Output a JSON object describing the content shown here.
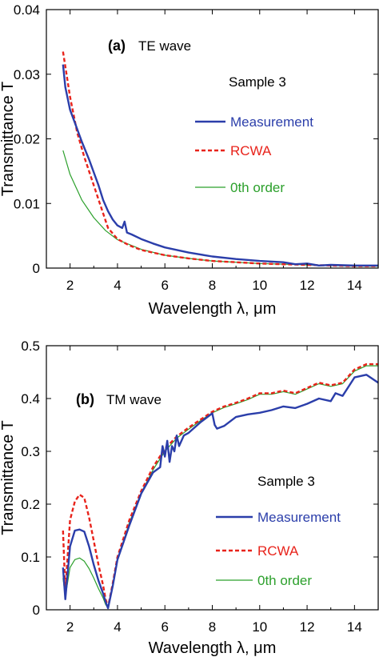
{
  "colors": {
    "measurement": "#2b3eaa",
    "rcwa": "#e8231b",
    "zeroth": "#2ca02c",
    "axis": "#000000"
  },
  "chart_data": [
    {
      "type": "line",
      "panel_label": "(a)",
      "title": "TE wave",
      "annotation": "Sample 3",
      "xlabel": "Wavelength λ, μm",
      "ylabel": "Transmittance T",
      "xlim": [
        1,
        15
      ],
      "ylim": [
        0,
        0.04
      ],
      "xticks": [
        2,
        4,
        6,
        8,
        10,
        12,
        14
      ],
      "yticks": [
        0,
        0.01,
        0.02,
        0.03,
        0.04
      ],
      "ytick_labels": [
        "0",
        "0.01",
        "0.02",
        "0.03",
        "0.04"
      ],
      "legend_position": "right",
      "series": [
        {
          "name": "Measurement",
          "style": "solid-thick",
          "x": [
            1.7,
            1.8,
            2.0,
            2.2,
            2.5,
            2.8,
            3.0,
            3.2,
            3.4,
            3.6,
            3.8,
            4.0,
            4.2,
            4.3,
            4.4,
            4.6,
            5.0,
            5.5,
            6.0,
            7.0,
            8.0,
            9.0,
            10.0,
            11.0,
            11.5,
            12.0,
            12.5,
            13.0,
            14.0,
            15.0
          ],
          "y": [
            0.0315,
            0.028,
            0.0245,
            0.0225,
            0.0195,
            0.0168,
            0.0148,
            0.0128,
            0.0105,
            0.0088,
            0.0075,
            0.0066,
            0.0062,
            0.0072,
            0.0055,
            0.0052,
            0.0045,
            0.0038,
            0.0032,
            0.0024,
            0.0018,
            0.0014,
            0.0011,
            0.0009,
            0.0006,
            0.0007,
            0.0004,
            0.0005,
            0.0004,
            0.0004
          ]
        },
        {
          "name": "RCWA",
          "style": "dashed",
          "x": [
            1.7,
            2.0,
            2.3,
            2.6,
            3.0,
            3.3,
            3.6,
            4.0,
            4.5,
            5.0,
            6.0,
            7.0,
            8.0,
            9.0,
            10.0,
            11.0,
            12.0,
            13.0,
            14.0,
            15.0
          ],
          "y": [
            0.0335,
            0.0265,
            0.021,
            0.0172,
            0.0128,
            0.0095,
            0.0062,
            0.0045,
            0.0035,
            0.0028,
            0.002,
            0.0015,
            0.0011,
            0.0009,
            0.0007,
            0.0006,
            0.0005,
            0.0004,
            0.0003,
            0.0003
          ]
        },
        {
          "name": "0th order",
          "style": "solid-thin",
          "x": [
            1.7,
            2.0,
            2.5,
            3.0,
            3.5,
            4.0,
            5.0,
            6.0,
            7.0,
            8.0,
            9.0,
            10.0,
            12.0,
            14.0,
            15.0
          ],
          "y": [
            0.0182,
            0.0145,
            0.0105,
            0.0078,
            0.0058,
            0.0044,
            0.0029,
            0.002,
            0.0015,
            0.0011,
            0.0009,
            0.0007,
            0.0005,
            0.0003,
            0.0003
          ]
        }
      ]
    },
    {
      "type": "line",
      "panel_label": "(b)",
      "title": "TM wave",
      "annotation": "Sample 3",
      "xlabel": "Wavelength λ, μm",
      "ylabel": "Transmittance T",
      "xlim": [
        1,
        15
      ],
      "ylim": [
        0,
        0.5
      ],
      "xticks": [
        2,
        4,
        6,
        8,
        10,
        12,
        14
      ],
      "yticks": [
        0,
        0.1,
        0.2,
        0.3,
        0.4,
        0.5
      ],
      "ytick_labels": [
        "0",
        "0.1",
        "0.2",
        "0.3",
        "0.4",
        "0.5"
      ],
      "legend_position": "right",
      "series": [
        {
          "name": "Measurement",
          "style": "solid-thick",
          "x": [
            1.7,
            1.8,
            2.0,
            2.2,
            2.4,
            2.6,
            2.8,
            3.0,
            3.2,
            3.4,
            3.5,
            3.6,
            3.8,
            4.0,
            4.5,
            5.0,
            5.5,
            5.8,
            5.9,
            6.0,
            6.1,
            6.2,
            6.3,
            6.4,
            6.5,
            6.6,
            6.8,
            7.0,
            7.5,
            8.0,
            8.1,
            8.2,
            8.5,
            9.0,
            9.5,
            10.0,
            10.5,
            11.0,
            11.5,
            12.0,
            12.5,
            13.0,
            13.2,
            13.5,
            14.0,
            14.5,
            15.0
          ],
          "y": [
            0.08,
            0.02,
            0.12,
            0.15,
            0.152,
            0.148,
            0.12,
            0.085,
            0.055,
            0.03,
            0.015,
            0.003,
            0.045,
            0.095,
            0.16,
            0.22,
            0.26,
            0.27,
            0.31,
            0.29,
            0.32,
            0.28,
            0.31,
            0.3,
            0.33,
            0.31,
            0.33,
            0.335,
            0.355,
            0.372,
            0.35,
            0.343,
            0.348,
            0.365,
            0.37,
            0.373,
            0.378,
            0.385,
            0.382,
            0.39,
            0.4,
            0.395,
            0.41,
            0.405,
            0.44,
            0.445,
            0.43
          ]
        },
        {
          "name": "RCWA",
          "style": "dashed",
          "x": [
            1.7,
            1.8,
            2.0,
            2.2,
            2.4,
            2.6,
            2.8,
            3.0,
            3.2,
            3.4,
            3.5,
            3.6,
            3.8,
            4.0,
            4.5,
            5.0,
            5.5,
            6.0,
            6.5,
            7.0,
            7.5,
            8.0,
            8.5,
            9.0,
            9.5,
            10.0,
            10.5,
            11.0,
            11.5,
            12.0,
            12.5,
            13.0,
            13.5,
            14.0,
            14.5,
            15.0
          ],
          "y": [
            0.15,
            0.035,
            0.17,
            0.205,
            0.218,
            0.212,
            0.175,
            0.13,
            0.085,
            0.045,
            0.02,
            0.005,
            0.05,
            0.1,
            0.17,
            0.225,
            0.27,
            0.305,
            0.328,
            0.345,
            0.36,
            0.375,
            0.385,
            0.392,
            0.4,
            0.41,
            0.41,
            0.415,
            0.41,
            0.42,
            0.43,
            0.425,
            0.43,
            0.455,
            0.465,
            0.465
          ]
        },
        {
          "name": "0th order",
          "style": "solid-thin",
          "x": [
            1.7,
            1.8,
            2.0,
            2.2,
            2.4,
            2.6,
            2.8,
            3.0,
            3.2,
            3.4,
            3.5,
            3.6,
            3.8,
            4.0,
            4.5,
            5.0,
            5.5,
            6.0,
            6.5,
            7.0,
            7.5,
            8.0,
            8.5,
            9.0,
            9.5,
            10.0,
            10.5,
            11.0,
            11.5,
            12.0,
            12.5,
            13.0,
            13.5,
            14.0,
            14.5,
            15.0
          ],
          "y": [
            0.06,
            0.025,
            0.08,
            0.095,
            0.098,
            0.092,
            0.078,
            0.06,
            0.04,
            0.022,
            0.01,
            0.003,
            0.045,
            0.095,
            0.165,
            0.222,
            0.265,
            0.3,
            0.325,
            0.342,
            0.358,
            0.373,
            0.383,
            0.39,
            0.398,
            0.408,
            0.408,
            0.413,
            0.408,
            0.418,
            0.428,
            0.423,
            0.428,
            0.452,
            0.462,
            0.462
          ]
        }
      ]
    }
  ]
}
